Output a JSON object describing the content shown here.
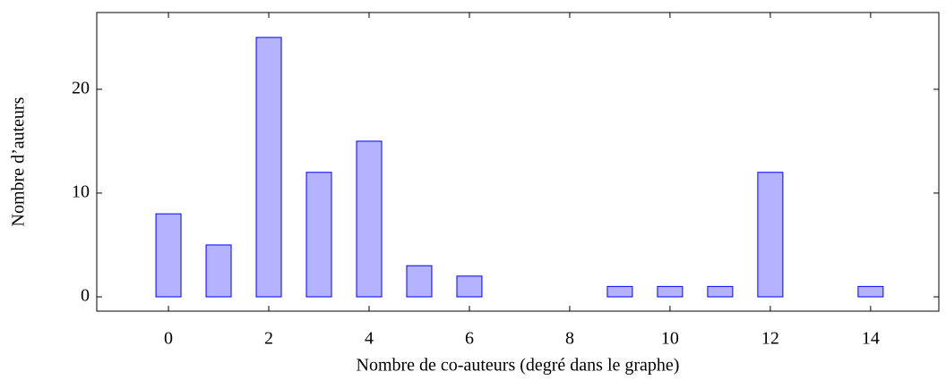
{
  "chart_data": {
    "type": "bar",
    "xlabel": "Nombre de co-auteurs (degré dans le graphe)",
    "ylabel": "Nombre d’auteurs",
    "x": [
      0,
      1,
      2,
      3,
      4,
      5,
      6,
      9,
      10,
      11,
      12,
      14
    ],
    "values": [
      8,
      5,
      25,
      12,
      15,
      3,
      2,
      1,
      1,
      1,
      12,
      1
    ],
    "color": "#b3b3ff",
    "edge_color": "#0000ff",
    "xlim": [
      -1.43,
      15.36
    ],
    "xticks": [
      0,
      2,
      4,
      6,
      8,
      10,
      12,
      14
    ],
    "ylim": [
      -1.38,
      27.4
    ],
    "yticks": [
      0,
      10,
      20
    ],
    "grid": false
  }
}
